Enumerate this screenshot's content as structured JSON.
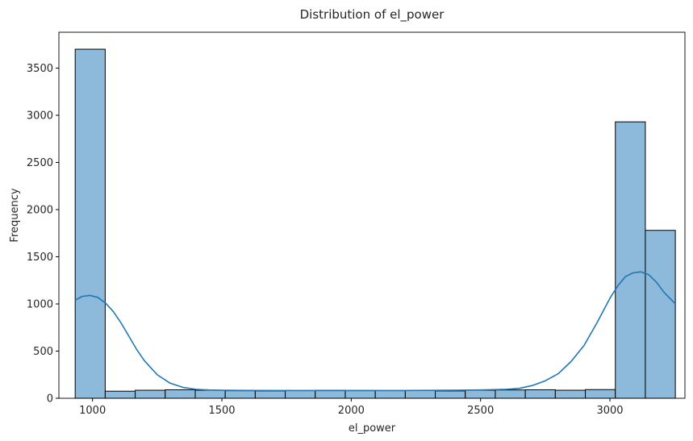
{
  "chart_data": {
    "type": "bar",
    "title": "Distribution of el_power",
    "xlabel": "el_power",
    "ylabel": "Frequency",
    "xlim": [
      870,
      3290
    ],
    "ylim": [
      0,
      3880
    ],
    "xticks": [
      1000,
      1500,
      2000,
      2500,
      3000
    ],
    "yticks": [
      0,
      500,
      1000,
      1500,
      2000,
      2500,
      3000,
      3500
    ],
    "bins": [
      {
        "x0": 933,
        "x1": 1049,
        "count": 3700
      },
      {
        "x0": 1049,
        "x1": 1165,
        "count": 75
      },
      {
        "x0": 1165,
        "x1": 1281,
        "count": 85
      },
      {
        "x0": 1281,
        "x1": 1397,
        "count": 90
      },
      {
        "x0": 1397,
        "x1": 1513,
        "count": 85
      },
      {
        "x0": 1513,
        "x1": 1629,
        "count": 80
      },
      {
        "x0": 1629,
        "x1": 1745,
        "count": 78
      },
      {
        "x0": 1745,
        "x1": 1861,
        "count": 82
      },
      {
        "x0": 1861,
        "x1": 1977,
        "count": 85
      },
      {
        "x0": 1977,
        "x1": 2093,
        "count": 83
      },
      {
        "x0": 2093,
        "x1": 2209,
        "count": 82
      },
      {
        "x0": 2209,
        "x1": 2325,
        "count": 82
      },
      {
        "x0": 2325,
        "x1": 2441,
        "count": 78
      },
      {
        "x0": 2441,
        "x1": 2557,
        "count": 85
      },
      {
        "x0": 2557,
        "x1": 2673,
        "count": 88
      },
      {
        "x0": 2673,
        "x1": 2789,
        "count": 90
      },
      {
        "x0": 2789,
        "x1": 2905,
        "count": 85
      },
      {
        "x0": 2905,
        "x1": 3021,
        "count": 92
      },
      {
        "x0": 3021,
        "x1": 3137,
        "count": 2930
      },
      {
        "x0": 3137,
        "x1": 3253,
        "count": 1780
      }
    ],
    "kde": {
      "x": [
        933,
        960,
        990,
        1020,
        1050,
        1080,
        1110,
        1140,
        1170,
        1200,
        1250,
        1300,
        1350,
        1400,
        1450,
        1500,
        1600,
        1800,
        2000,
        2200,
        2400,
        2500,
        2600,
        2650,
        2700,
        2750,
        2800,
        2850,
        2900,
        2950,
        3000,
        3030,
        3060,
        3090,
        3120,
        3150,
        3180,
        3210,
        3253
      ],
      "y": [
        1040,
        1080,
        1090,
        1070,
        1010,
        920,
        800,
        660,
        520,
        400,
        250,
        160,
        115,
        95,
        88,
        85,
        83,
        82,
        82,
        82,
        85,
        88,
        95,
        105,
        135,
        185,
        260,
        390,
        560,
        800,
        1060,
        1190,
        1290,
        1330,
        1340,
        1310,
        1230,
        1120,
        1000
      ]
    },
    "colors": {
      "bar_fill": "#8db9db",
      "bar_edge": "#000000",
      "kde_line": "#1f77b4",
      "axes": "#000000",
      "text": "#262626"
    },
    "grid": false,
    "legend": "none"
  }
}
